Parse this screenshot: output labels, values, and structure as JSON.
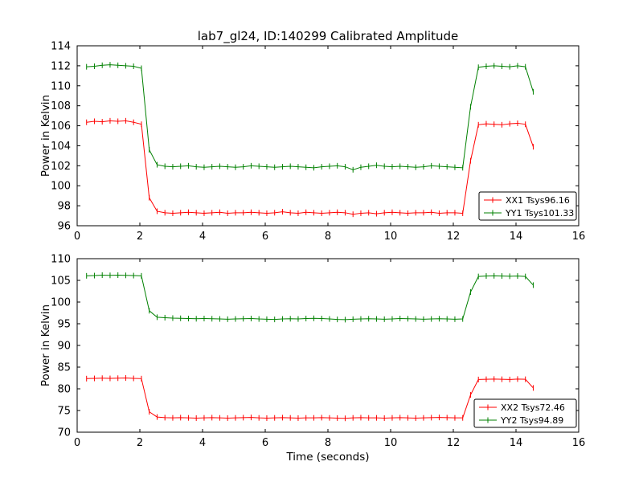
{
  "figure": {
    "title": "lab7_gl24, ID:140299 Calibrated Amplitude",
    "xlabel": "Time (seconds)",
    "background_color": "#ffffff",
    "axis_color": "#000000"
  },
  "chart_data": [
    {
      "type": "line",
      "marker": "errorbar-plus",
      "ylabel": "Power in Kelvin",
      "xlim": [
        0,
        16
      ],
      "ylim": [
        96,
        114
      ],
      "xticks": [
        0,
        2,
        4,
        6,
        8,
        10,
        12,
        14,
        16
      ],
      "yticks": [
        96,
        98,
        100,
        102,
        104,
        106,
        108,
        110,
        112,
        114
      ],
      "grid": false,
      "legend_position": "lower right",
      "x": [
        0.3,
        0.55,
        0.8,
        1.05,
        1.3,
        1.55,
        1.8,
        2.05,
        2.3,
        2.55,
        2.8,
        3.05,
        3.3,
        3.55,
        3.8,
        4.05,
        4.3,
        4.55,
        4.8,
        5.05,
        5.3,
        5.55,
        5.8,
        6.05,
        6.3,
        6.55,
        6.8,
        7.05,
        7.3,
        7.55,
        7.8,
        8.05,
        8.3,
        8.55,
        8.8,
        9.05,
        9.3,
        9.55,
        9.8,
        10.05,
        10.3,
        10.55,
        10.8,
        11.05,
        11.3,
        11.55,
        11.8,
        12.05,
        12.3,
        12.55,
        12.8,
        13.05,
        13.3,
        13.55,
        13.8,
        14.05,
        14.3,
        14.55
      ],
      "series": [
        {
          "name": "XX1 Tsys96.16",
          "color": "#ff0000",
          "values": [
            106.35,
            106.45,
            106.4,
            106.5,
            106.45,
            106.5,
            106.35,
            106.15,
            98.8,
            97.45,
            97.3,
            97.25,
            97.3,
            97.35,
            97.3,
            97.25,
            97.3,
            97.35,
            97.25,
            97.3,
            97.3,
            97.35,
            97.3,
            97.25,
            97.3,
            97.4,
            97.3,
            97.25,
            97.35,
            97.3,
            97.25,
            97.3,
            97.35,
            97.3,
            97.15,
            97.25,
            97.3,
            97.2,
            97.3,
            97.35,
            97.3,
            97.25,
            97.3,
            97.3,
            97.35,
            97.25,
            97.3,
            97.3,
            97.25,
            102.5,
            106.1,
            106.2,
            106.15,
            106.1,
            106.2,
            106.25,
            106.15,
            103.9
          ]
        },
        {
          "name": "YY1 Tsys101.33",
          "color": "#008000",
          "values": [
            111.9,
            111.95,
            112.05,
            112.1,
            112.05,
            112.0,
            111.95,
            111.75,
            103.6,
            102.1,
            101.95,
            101.9,
            101.95,
            102.0,
            101.9,
            101.85,
            101.9,
            101.95,
            101.9,
            101.85,
            101.9,
            102.0,
            101.95,
            101.9,
            101.85,
            101.9,
            101.95,
            101.9,
            101.85,
            101.8,
            101.9,
            101.95,
            102.0,
            101.9,
            101.6,
            101.85,
            101.95,
            102.05,
            101.95,
            101.9,
            101.95,
            101.9,
            101.85,
            101.9,
            102.0,
            101.95,
            101.9,
            101.85,
            101.8,
            107.9,
            111.85,
            111.95,
            112.0,
            111.95,
            111.9,
            112.0,
            111.9,
            109.4
          ]
        }
      ]
    },
    {
      "type": "line",
      "marker": "errorbar-plus",
      "ylabel": "Power in Kelvin",
      "xlabel": "Time (seconds)",
      "xlim": [
        0,
        16
      ],
      "ylim": [
        70,
        110
      ],
      "xticks": [
        0,
        2,
        4,
        6,
        8,
        10,
        12,
        14,
        16
      ],
      "yticks": [
        70,
        75,
        80,
        85,
        90,
        95,
        100,
        105,
        110
      ],
      "grid": false,
      "legend_position": "lower right",
      "x": [
        0.3,
        0.55,
        0.8,
        1.05,
        1.3,
        1.55,
        1.8,
        2.05,
        2.3,
        2.55,
        2.8,
        3.05,
        3.3,
        3.55,
        3.8,
        4.05,
        4.3,
        4.55,
        4.8,
        5.05,
        5.3,
        5.55,
        5.8,
        6.05,
        6.3,
        6.55,
        6.8,
        7.05,
        7.3,
        7.55,
        7.8,
        8.05,
        8.3,
        8.55,
        8.8,
        9.05,
        9.3,
        9.55,
        9.8,
        10.05,
        10.3,
        10.55,
        10.8,
        11.05,
        11.3,
        11.55,
        11.8,
        12.05,
        12.3,
        12.55,
        12.8,
        13.05,
        13.3,
        13.55,
        13.8,
        14.05,
        14.3,
        14.55
      ],
      "series": [
        {
          "name": "XX2 Tsys72.46",
          "color": "#ff0000",
          "values": [
            82.35,
            82.4,
            82.45,
            82.4,
            82.45,
            82.5,
            82.4,
            82.35,
            74.7,
            73.5,
            73.35,
            73.3,
            73.35,
            73.3,
            73.25,
            73.3,
            73.35,
            73.3,
            73.25,
            73.3,
            73.35,
            73.4,
            73.3,
            73.25,
            73.3,
            73.35,
            73.3,
            73.25,
            73.3,
            73.3,
            73.35,
            73.3,
            73.25,
            73.2,
            73.3,
            73.35,
            73.3,
            73.3,
            73.25,
            73.3,
            73.35,
            73.3,
            73.25,
            73.3,
            73.35,
            73.4,
            73.35,
            73.3,
            73.3,
            78.6,
            82.15,
            82.2,
            82.25,
            82.2,
            82.15,
            82.25,
            82.2,
            80.2
          ]
        },
        {
          "name": "YY2 Tsys94.89",
          "color": "#008000",
          "values": [
            106.05,
            106.1,
            106.2,
            106.15,
            106.2,
            106.15,
            106.1,
            106.05,
            98.0,
            96.5,
            96.4,
            96.3,
            96.25,
            96.2,
            96.15,
            96.2,
            96.15,
            96.1,
            96.05,
            96.1,
            96.15,
            96.2,
            96.1,
            96.05,
            96.0,
            96.1,
            96.15,
            96.1,
            96.2,
            96.25,
            96.2,
            96.1,
            96.0,
            95.95,
            96.05,
            96.1,
            96.15,
            96.1,
            96.05,
            96.1,
            96.2,
            96.15,
            96.1,
            96.05,
            96.1,
            96.15,
            96.1,
            96.05,
            96.1,
            102.3,
            105.9,
            106.0,
            106.05,
            106.0,
            105.95,
            106.0,
            105.9,
            103.9
          ]
        }
      ]
    }
  ]
}
